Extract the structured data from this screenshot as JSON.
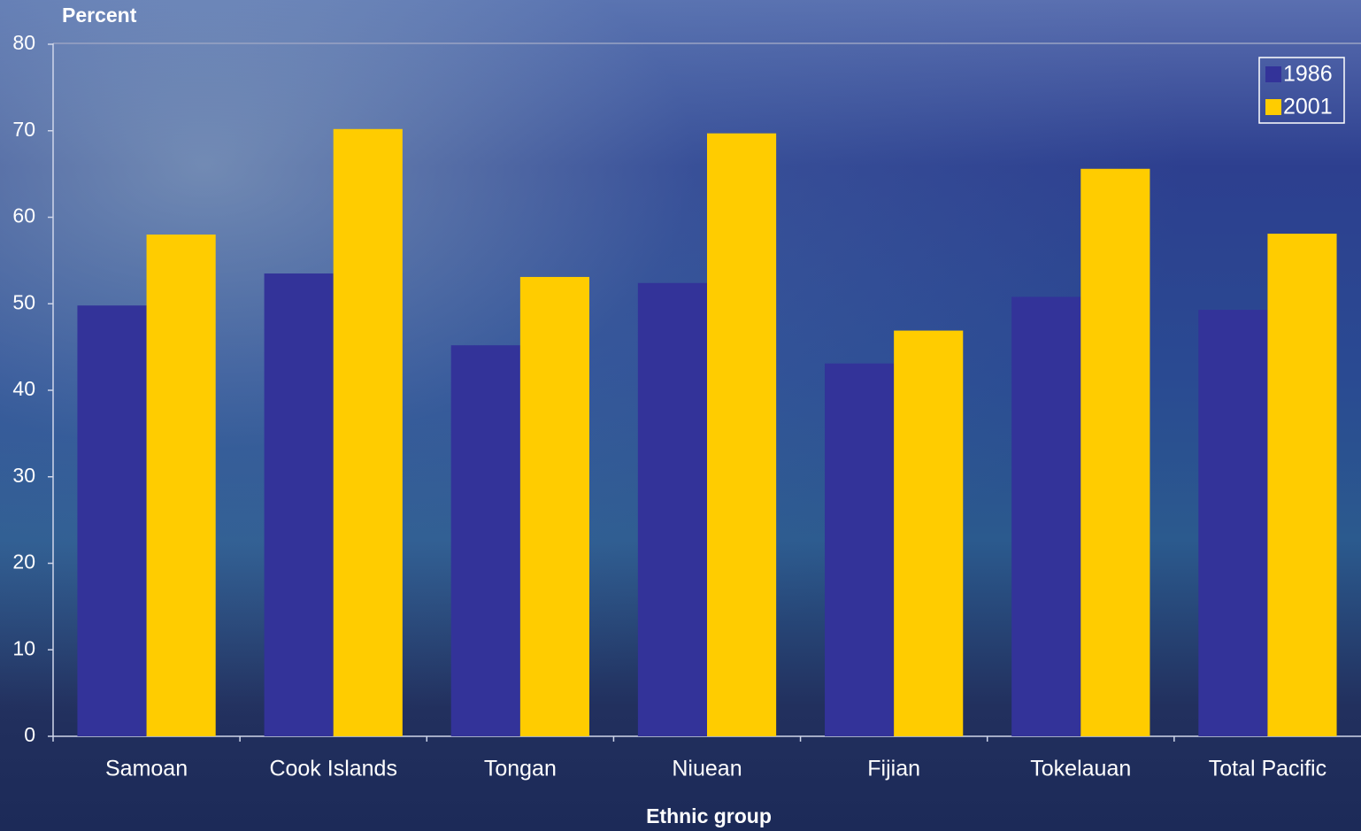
{
  "chart_data": {
    "type": "bar",
    "y_label": "Percent",
    "x_label": "Ethnic group",
    "categories": [
      "Samoan",
      "Cook Islands",
      "Tongan",
      "Niuean",
      "Fijian",
      "Tokelauan",
      "Total Pacific"
    ],
    "series": [
      {
        "name": "1986",
        "color": "#333399",
        "values": [
          49.8,
          53.5,
          45.2,
          52.4,
          43.1,
          50.8,
          49.3
        ]
      },
      {
        "name": "2001",
        "color": "#ffcc00",
        "values": [
          58.0,
          70.2,
          53.1,
          69.7,
          46.9,
          65.6,
          58.1
        ]
      }
    ],
    "ylim": [
      0,
      80
    ],
    "yticks": [
      0,
      10,
      20,
      30,
      40,
      50,
      60,
      70,
      80
    ],
    "grid": false,
    "legend": "top-right"
  }
}
